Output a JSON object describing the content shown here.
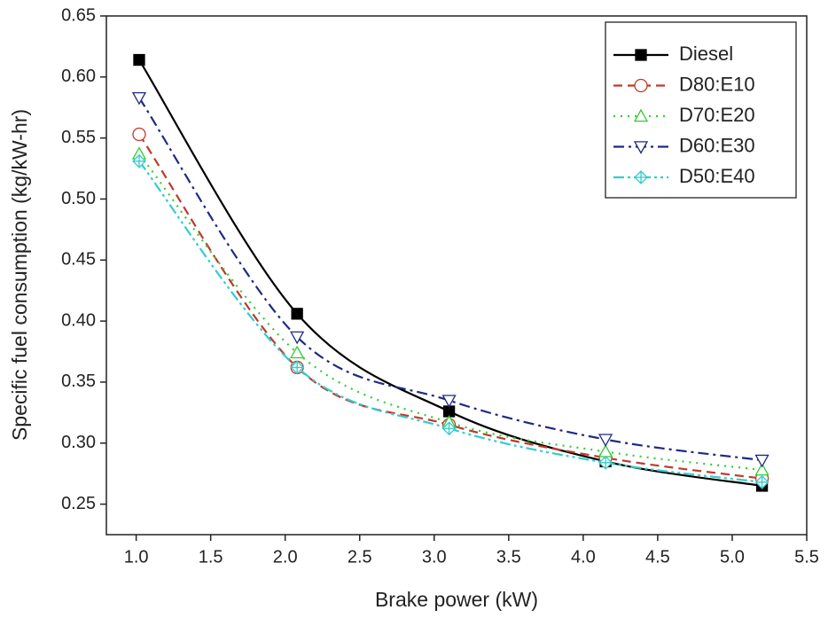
{
  "chart_data": {
    "type": "line",
    "x_label": "Brake power (kW)",
    "y_label": "Specific fuel consumption (kg/kW-hr)",
    "x": [
      1.02,
      2.08,
      3.1,
      4.15,
      5.2
    ],
    "xlim": [
      0.8,
      5.5
    ],
    "xticks": [
      {
        "value": 1,
        "label": "1.0"
      },
      1.5,
      {
        "value": 2,
        "label": "2.0"
      },
      2.5,
      {
        "value": 3,
        "label": "3.0"
      },
      3.5,
      {
        "value": 4,
        "label": "4.0"
      },
      4.5,
      {
        "value": 5,
        "label": "5.0"
      },
      5.5
    ],
    "ylim": [
      0.225,
      0.65
    ],
    "yticks": [
      0.25,
      {
        "value": 0.3,
        "label": "0.30"
      },
      0.35,
      {
        "value": 0.4,
        "label": "0.40"
      },
      0.45,
      {
        "value": 0.5,
        "label": "0.50"
      },
      0.55,
      {
        "value": 0.6,
        "label": "0.60"
      },
      0.65
    ],
    "legend": "upper right",
    "series": [
      {
        "name": "Diesel",
        "color": "#000000",
        "line_style": "solid",
        "marker": "filled-square",
        "values": [
          0.614,
          0.406,
          0.326,
          0.285,
          0.265
        ]
      },
      {
        "name": "D80:E10",
        "color": "#c0392b",
        "line_style": "dashed",
        "marker": "circle",
        "values": [
          0.553,
          0.362,
          0.315,
          0.288,
          0.271
        ]
      },
      {
        "name": "D70:E20",
        "color": "#33cc33",
        "line_style": "dotted",
        "marker": "triangle-up",
        "values": [
          0.537,
          0.374,
          0.317,
          0.293,
          0.278
        ]
      },
      {
        "name": "D60:E30",
        "color": "#1f2a80",
        "line_style": "dashdot",
        "marker": "triangle-down",
        "values": [
          0.583,
          0.387,
          0.335,
          0.303,
          0.286
        ]
      },
      {
        "name": "D50:E40",
        "color": "#33cccc",
        "line_style": "dashdotdot",
        "marker": "crossed-diamond",
        "values": [
          0.531,
          0.362,
          0.312,
          0.284,
          0.268
        ]
      }
    ]
  }
}
